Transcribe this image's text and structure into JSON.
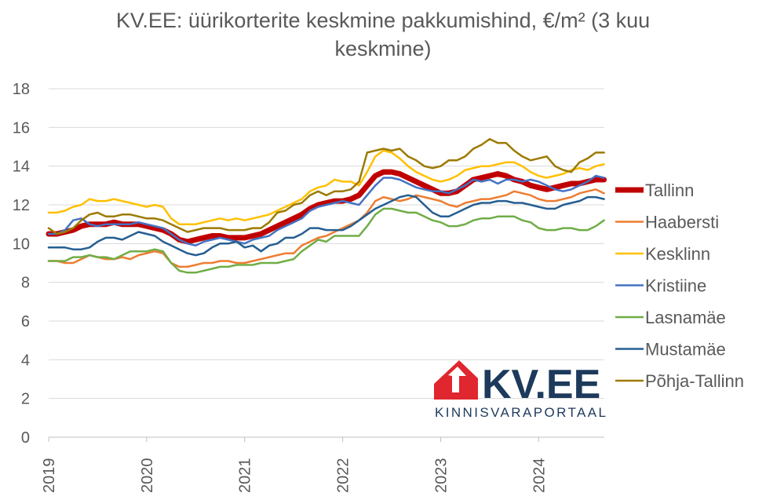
{
  "title_line1": "KV.EE: üürikorterite keskmine pakkumishind, €/m² (3 kuu",
  "title_line2": "keskmine)",
  "logo": {
    "brand": "KV.EE",
    "tagline": "KINNISVARAPORTAAL",
    "color": "#e0262e",
    "text_color": "#1d3a5c"
  },
  "chart_data": {
    "type": "line",
    "ylim": [
      0,
      18
    ],
    "yticks": [
      0,
      2,
      4,
      6,
      8,
      10,
      12,
      14,
      16,
      18
    ],
    "xlim": [
      2019,
      2024.67
    ],
    "xticks": [
      2019,
      2020,
      2021,
      2022,
      2023,
      2024
    ],
    "xtick_labels": [
      "2019",
      "2020",
      "2021",
      "2022",
      "2023",
      "2024"
    ],
    "grid": "horizontal",
    "legend_position": "right",
    "x": [
      2019.0,
      2019.083,
      2019.167,
      2019.25,
      2019.333,
      2019.417,
      2019.5,
      2019.583,
      2019.667,
      2019.75,
      2019.833,
      2019.917,
      2020.0,
      2020.083,
      2020.167,
      2020.25,
      2020.333,
      2020.417,
      2020.5,
      2020.583,
      2020.667,
      2020.75,
      2020.833,
      2020.917,
      2021.0,
      2021.083,
      2021.167,
      2021.25,
      2021.333,
      2021.417,
      2021.5,
      2021.583,
      2021.667,
      2021.75,
      2021.833,
      2021.917,
      2022.0,
      2022.083,
      2022.167,
      2022.25,
      2022.333,
      2022.417,
      2022.5,
      2022.583,
      2022.667,
      2022.75,
      2022.833,
      2022.917,
      2023.0,
      2023.083,
      2023.167,
      2023.25,
      2023.333,
      2023.417,
      2023.5,
      2023.583,
      2023.667,
      2023.75,
      2023.833,
      2023.917,
      2024.0,
      2024.083,
      2024.167,
      2024.25,
      2024.333,
      2024.417,
      2024.5,
      2024.583,
      2024.667
    ],
    "series": [
      {
        "name": "Tallinn",
        "color": "#c00000",
        "width": 7,
        "values": [
          10.5,
          10.5,
          10.6,
          10.7,
          10.9,
          11.0,
          11.0,
          11.0,
          11.1,
          11.0,
          11.0,
          11.0,
          10.9,
          10.8,
          10.7,
          10.5,
          10.2,
          10.1,
          10.2,
          10.3,
          10.4,
          10.4,
          10.3,
          10.3,
          10.3,
          10.4,
          10.5,
          10.7,
          10.9,
          11.1,
          11.3,
          11.5,
          11.8,
          12.0,
          12.1,
          12.2,
          12.2,
          12.3,
          12.5,
          13.0,
          13.5,
          13.7,
          13.7,
          13.6,
          13.4,
          13.2,
          13.0,
          12.8,
          12.6,
          12.6,
          12.7,
          13.0,
          13.3,
          13.4,
          13.5,
          13.6,
          13.5,
          13.3,
          13.2,
          13.0,
          12.9,
          12.8,
          12.9,
          13.0,
          13.1,
          13.1,
          13.2,
          13.3,
          13.3
        ]
      },
      {
        "name": "Haabersti",
        "color": "#ed7d31",
        "width": 2.5,
        "values": [
          9.1,
          9.1,
          9.0,
          9.0,
          9.2,
          9.4,
          9.3,
          9.2,
          9.2,
          9.3,
          9.2,
          9.4,
          9.5,
          9.6,
          9.5,
          9.0,
          8.8,
          8.8,
          8.9,
          9.0,
          9.0,
          9.1,
          9.1,
          9.0,
          9.0,
          9.1,
          9.2,
          9.3,
          9.4,
          9.5,
          9.5,
          9.9,
          10.1,
          10.3,
          10.4,
          10.6,
          10.8,
          11.0,
          11.2,
          11.6,
          12.2,
          12.4,
          12.3,
          12.2,
          12.3,
          12.5,
          12.4,
          12.3,
          12.2,
          12.0,
          11.9,
          12.1,
          12.2,
          12.3,
          12.3,
          12.4,
          12.5,
          12.7,
          12.6,
          12.5,
          12.3,
          12.2,
          12.2,
          12.3,
          12.4,
          12.6,
          12.7,
          12.8,
          12.6
        ]
      },
      {
        "name": "Kesklinn",
        "color": "#ffc000",
        "width": 2.5,
        "values": [
          11.6,
          11.6,
          11.7,
          11.9,
          12.0,
          12.3,
          12.2,
          12.2,
          12.3,
          12.2,
          12.1,
          12.0,
          11.9,
          12.0,
          11.9,
          11.3,
          11.0,
          11.0,
          11.0,
          11.1,
          11.2,
          11.3,
          11.2,
          11.3,
          11.2,
          11.3,
          11.4,
          11.5,
          11.7,
          11.9,
          12.1,
          12.3,
          12.7,
          12.9,
          13.0,
          13.3,
          13.2,
          13.2,
          13.0,
          13.7,
          14.5,
          14.8,
          14.7,
          14.4,
          14.0,
          13.7,
          13.5,
          13.3,
          13.2,
          13.3,
          13.5,
          13.8,
          13.9,
          14.0,
          14.0,
          14.1,
          14.2,
          14.2,
          14.0,
          13.7,
          13.5,
          13.4,
          13.5,
          13.6,
          13.8,
          13.9,
          13.8,
          14.0,
          14.1
        ]
      },
      {
        "name": "Kristiine",
        "color": "#4472c4",
        "width": 2.5,
        "values": [
          10.5,
          10.5,
          10.7,
          11.2,
          11.3,
          11.0,
          10.9,
          11.0,
          11.0,
          11.0,
          11.0,
          11.1,
          11.0,
          10.9,
          10.8,
          10.5,
          10.2,
          10.0,
          9.9,
          10.1,
          10.2,
          10.3,
          10.2,
          10.1,
          10.0,
          10.2,
          10.3,
          10.4,
          10.7,
          10.9,
          11.1,
          11.3,
          11.7,
          11.9,
          12.0,
          12.1,
          12.2,
          12.1,
          12.0,
          12.5,
          13.0,
          13.4,
          13.4,
          13.3,
          13.1,
          12.9,
          12.8,
          12.7,
          12.7,
          12.6,
          12.8,
          13.0,
          13.3,
          13.2,
          13.3,
          13.1,
          13.3,
          13.3,
          13.2,
          13.3,
          13.2,
          13.0,
          12.8,
          12.7,
          12.8,
          13.0,
          13.2,
          13.5,
          13.4
        ]
      },
      {
        "name": "Lasnamäe",
        "color": "#70ad47",
        "width": 2.5,
        "values": [
          9.1,
          9.1,
          9.1,
          9.3,
          9.3,
          9.4,
          9.3,
          9.3,
          9.2,
          9.4,
          9.6,
          9.6,
          9.6,
          9.7,
          9.6,
          9.0,
          8.6,
          8.5,
          8.5,
          8.6,
          8.7,
          8.8,
          8.8,
          8.9,
          8.9,
          8.9,
          9.0,
          9.0,
          9.0,
          9.1,
          9.2,
          9.6,
          9.9,
          10.2,
          10.1,
          10.4,
          10.4,
          10.4,
          10.4,
          10.9,
          11.5,
          11.8,
          11.8,
          11.7,
          11.6,
          11.6,
          11.4,
          11.2,
          11.1,
          10.9,
          10.9,
          11.0,
          11.2,
          11.3,
          11.3,
          11.4,
          11.4,
          11.4,
          11.2,
          11.1,
          10.8,
          10.7,
          10.7,
          10.8,
          10.8,
          10.7,
          10.7,
          10.9,
          11.2
        ]
      },
      {
        "name": "Mustamäe",
        "color": "#255e91",
        "width": 2.5,
        "values": [
          9.8,
          9.8,
          9.8,
          9.7,
          9.7,
          9.8,
          10.1,
          10.3,
          10.3,
          10.2,
          10.4,
          10.6,
          10.5,
          10.4,
          10.1,
          9.9,
          9.7,
          9.5,
          9.4,
          9.5,
          9.8,
          10.0,
          10.0,
          10.1,
          9.8,
          9.9,
          9.6,
          9.9,
          10.0,
          10.3,
          10.3,
          10.5,
          10.8,
          10.8,
          10.7,
          10.7,
          10.7,
          10.9,
          11.2,
          11.5,
          11.8,
          12.0,
          12.2,
          12.4,
          12.5,
          12.4,
          12.0,
          11.6,
          11.4,
          11.4,
          11.6,
          11.8,
          12.0,
          12.1,
          12.1,
          12.2,
          12.2,
          12.1,
          12.1,
          12.0,
          11.9,
          11.8,
          11.8,
          12.0,
          12.1,
          12.2,
          12.4,
          12.4,
          12.3
        ]
      },
      {
        "name": "Põhja-Tallinn",
        "color": "#9c7a00",
        "width": 2.5,
        "values": [
          10.8,
          10.5,
          10.6,
          10.8,
          11.2,
          11.5,
          11.6,
          11.4,
          11.4,
          11.5,
          11.5,
          11.4,
          11.3,
          11.3,
          11.2,
          11.0,
          10.8,
          10.6,
          10.7,
          10.8,
          10.8,
          10.8,
          10.7,
          10.7,
          10.7,
          10.8,
          10.8,
          11.1,
          11.6,
          11.7,
          12.0,
          12.1,
          12.5,
          12.7,
          12.5,
          12.7,
          12.7,
          12.8,
          13.2,
          14.7,
          14.8,
          14.9,
          14.8,
          14.9,
          14.5,
          14.3,
          14.0,
          13.9,
          14.0,
          14.3,
          14.3,
          14.5,
          14.9,
          15.1,
          15.4,
          15.2,
          15.2,
          14.8,
          14.5,
          14.3,
          14.4,
          14.5,
          14.0,
          13.8,
          13.7,
          14.2,
          14.4,
          14.7,
          14.7
        ]
      }
    ]
  }
}
